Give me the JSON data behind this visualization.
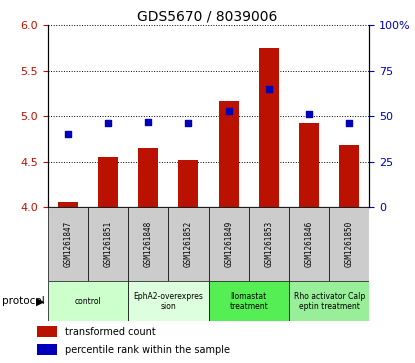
{
  "title": "GDS5670 / 8039006",
  "samples": [
    "GSM1261847",
    "GSM1261851",
    "GSM1261848",
    "GSM1261852",
    "GSM1261849",
    "GSM1261853",
    "GSM1261846",
    "GSM1261850"
  ],
  "transformed_count": [
    4.05,
    4.55,
    4.65,
    4.52,
    5.17,
    5.75,
    4.93,
    4.68
  ],
  "percentile_rank": [
    40,
    46,
    47,
    46,
    53,
    65,
    51,
    46
  ],
  "ylim_left": [
    4.0,
    6.0
  ],
  "ylim_right": [
    0,
    100
  ],
  "yticks_left": [
    4.0,
    4.5,
    5.0,
    5.5,
    6.0
  ],
  "yticks_right": [
    0,
    25,
    50,
    75,
    100
  ],
  "ytick_labels_right": [
    "0",
    "25",
    "50",
    "75",
    "100%"
  ],
  "protocols": [
    {
      "label": "control",
      "span": [
        0,
        2
      ],
      "color": "#ccffcc"
    },
    {
      "label": "EphA2-overexpres\nsion",
      "span": [
        2,
        4
      ],
      "color": "#ddffdd"
    },
    {
      "label": "Ilomastat\ntreatment",
      "span": [
        4,
        6
      ],
      "color": "#55ee55"
    },
    {
      "label": "Rho activator Calp\neptin treatment",
      "span": [
        6,
        8
      ],
      "color": "#99ee99"
    }
  ],
  "bar_color": "#bb1100",
  "dot_color": "#0000bb",
  "grid_color": "#000000",
  "background_color": "#ffffff",
  "sample_bg_color": "#cccccc",
  "bar_width": 0.5,
  "legend_items": [
    {
      "label": "transformed count",
      "color": "#bb1100"
    },
    {
      "label": "percentile rank within the sample",
      "color": "#0000bb"
    }
  ]
}
